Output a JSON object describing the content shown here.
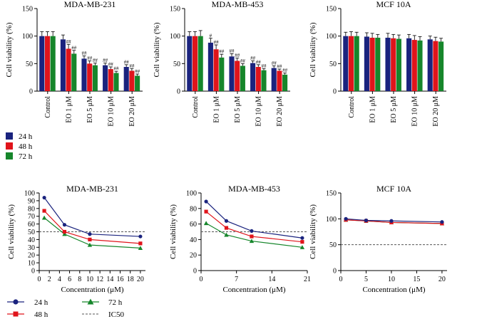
{
  "colors": {
    "series_24h": "#1a237e",
    "series_48h": "#e0141b",
    "series_72h": "#16862b",
    "axis": "#000000",
    "ic50": "#555555"
  },
  "chart_data": [
    {
      "id": "bar-mda231",
      "type": "bar",
      "title": "MDA-MB-231",
      "ylabel": "Cell viability (%)",
      "xlabel": "",
      "ylim": [
        0,
        150
      ],
      "yticks": [
        "0",
        "50",
        "100",
        "150"
      ],
      "categories": [
        "Control",
        "EO 1 μM",
        "EO 5 μM",
        "EO 10 μM",
        "EO 20 μM"
      ],
      "series": [
        {
          "name": "24 h",
          "values": [
            100,
            94,
            59,
            47,
            44
          ],
          "errors": [
            8,
            8,
            5,
            4,
            4
          ],
          "sig": [
            "",
            "",
            "##",
            "##",
            "##"
          ]
        },
        {
          "name": "48 h",
          "values": [
            100,
            77,
            50,
            40,
            37
          ],
          "errors": [
            8,
            8,
            5,
            4,
            4
          ],
          "sig": [
            "",
            "##",
            "##",
            "##",
            "##"
          ]
        },
        {
          "name": "72 h",
          "values": [
            100,
            68,
            47,
            33,
            28
          ],
          "errors": [
            8,
            6,
            4,
            3,
            3
          ],
          "sig": [
            "",
            "##",
            "##",
            "##",
            "##"
          ]
        }
      ]
    },
    {
      "id": "bar-mda453",
      "type": "bar",
      "title": "MDA-MB-453",
      "ylabel": "Cell viability (%)",
      "xlabel": "",
      "ylim": [
        0,
        150
      ],
      "yticks": [
        "0",
        "50",
        "100",
        "150"
      ],
      "categories": [
        "Control",
        "EO 1 μM",
        "EO 5 μM",
        "EO 10 μM",
        "EO 20 μM"
      ],
      "series": [
        {
          "name": "24 h",
          "values": [
            100,
            88,
            63,
            51,
            42
          ],
          "errors": [
            8,
            8,
            5,
            4,
            4
          ],
          "sig": [
            "",
            "#",
            "##",
            "##",
            "##"
          ]
        },
        {
          "name": "48 h",
          "values": [
            100,
            76,
            55,
            44,
            37
          ],
          "errors": [
            8,
            8,
            5,
            4,
            3
          ],
          "sig": [
            "",
            "##",
            "##",
            "##",
            "##"
          ]
        },
        {
          "name": "72 h",
          "values": [
            100,
            61,
            46,
            38,
            30
          ],
          "errors": [
            10,
            6,
            4,
            3,
            3
          ],
          "sig": [
            "",
            "##",
            "##",
            "##",
            "##"
          ]
        }
      ]
    },
    {
      "id": "bar-mcf10a",
      "type": "bar",
      "title": "MCF 10A",
      "ylabel": "Cell viability (%)",
      "xlabel": "",
      "ylim": [
        0,
        150
      ],
      "yticks": [
        "0",
        "50",
        "100",
        "150"
      ],
      "categories": [
        "Control",
        "EO 1 μM",
        "EO 5 μM",
        "EO 10 μM",
        "EO 20 μM"
      ],
      "series": [
        {
          "name": "24 h",
          "values": [
            100,
            99,
            97,
            96,
            94
          ],
          "errors": [
            7,
            7,
            8,
            7,
            6
          ],
          "sig": [
            "",
            "",
            "",
            "",
            ""
          ]
        },
        {
          "name": "48 h",
          "values": [
            100,
            97,
            96,
            93,
            91
          ],
          "errors": [
            8,
            8,
            7,
            8,
            7
          ],
          "sig": [
            "",
            "",
            "",
            "",
            ""
          ]
        },
        {
          "name": "72 h",
          "values": [
            100,
            97,
            95,
            92,
            90
          ],
          "errors": [
            7,
            6,
            7,
            7,
            6
          ],
          "sig": [
            "",
            "",
            "",
            "",
            ""
          ]
        }
      ]
    },
    {
      "id": "line-mda231",
      "type": "line",
      "title": "MDA-MB-231",
      "ylabel": "Cell viability (%)",
      "xlabel": "Concentration (μM)",
      "xlim": [
        0,
        21
      ],
      "ylim": [
        0,
        100
      ],
      "xticks": [
        0,
        2,
        4,
        6,
        8,
        10,
        12,
        14,
        16,
        18,
        20
      ],
      "yticks": [
        0,
        10,
        20,
        30,
        40,
        50,
        60,
        70,
        80,
        90,
        100
      ],
      "x": [
        1,
        5,
        10,
        20
      ],
      "ic50": 50,
      "series": [
        {
          "name": "24 h",
          "marker": "circle",
          "values": [
            94,
            59,
            47,
            44
          ]
        },
        {
          "name": "48 h",
          "marker": "square",
          "values": [
            77,
            50,
            40,
            35
          ]
        },
        {
          "name": "72 h",
          "marker": "triangle",
          "values": [
            68,
            47,
            33,
            29
          ]
        }
      ]
    },
    {
      "id": "line-mda453",
      "type": "line",
      "title": "MDA-MB-453",
      "ylabel": "Cell viability (%)",
      "xlabel": "Concentration (μM)",
      "xlim": [
        0,
        21
      ],
      "ylim": [
        0,
        100
      ],
      "xticks": [
        0,
        7,
        14,
        21
      ],
      "yticks": [
        0,
        20,
        40,
        60,
        80,
        100
      ],
      "x": [
        1,
        5,
        10,
        20
      ],
      "ic50": 50,
      "series": [
        {
          "name": "24 h",
          "marker": "circle",
          "values": [
            89,
            64,
            51,
            42
          ]
        },
        {
          "name": "48 h",
          "marker": "square",
          "values": [
            76,
            55,
            44,
            37
          ]
        },
        {
          "name": "72 h",
          "marker": "triangle",
          "values": [
            61,
            46,
            38,
            30
          ]
        }
      ]
    },
    {
      "id": "line-mcf10a",
      "type": "line",
      "title": "MCF 10A",
      "ylabel": "Cell viability (%)",
      "xlabel": "Concentration (μM)",
      "xlim": [
        0,
        21
      ],
      "ylim": [
        0,
        150
      ],
      "xticks": [
        0,
        5,
        10,
        15,
        20
      ],
      "yticks": [
        0,
        50,
        100,
        150
      ],
      "x": [
        1,
        5,
        10,
        20
      ],
      "ic50": 50,
      "series": [
        {
          "name": "24 h",
          "marker": "circle",
          "values": [
            100,
            97,
            96,
            94
          ]
        },
        {
          "name": "48 h",
          "marker": "square",
          "values": [
            98,
            96,
            93,
            91
          ]
        },
        {
          "name": "72 h",
          "marker": "triangle",
          "values": [
            98,
            96,
            93,
            91
          ]
        }
      ]
    }
  ],
  "bar_legend": [
    "24 h",
    "48 h",
    "72 h"
  ],
  "line_legend": [
    "24 h",
    "48 h",
    "72 h",
    "IC50"
  ]
}
